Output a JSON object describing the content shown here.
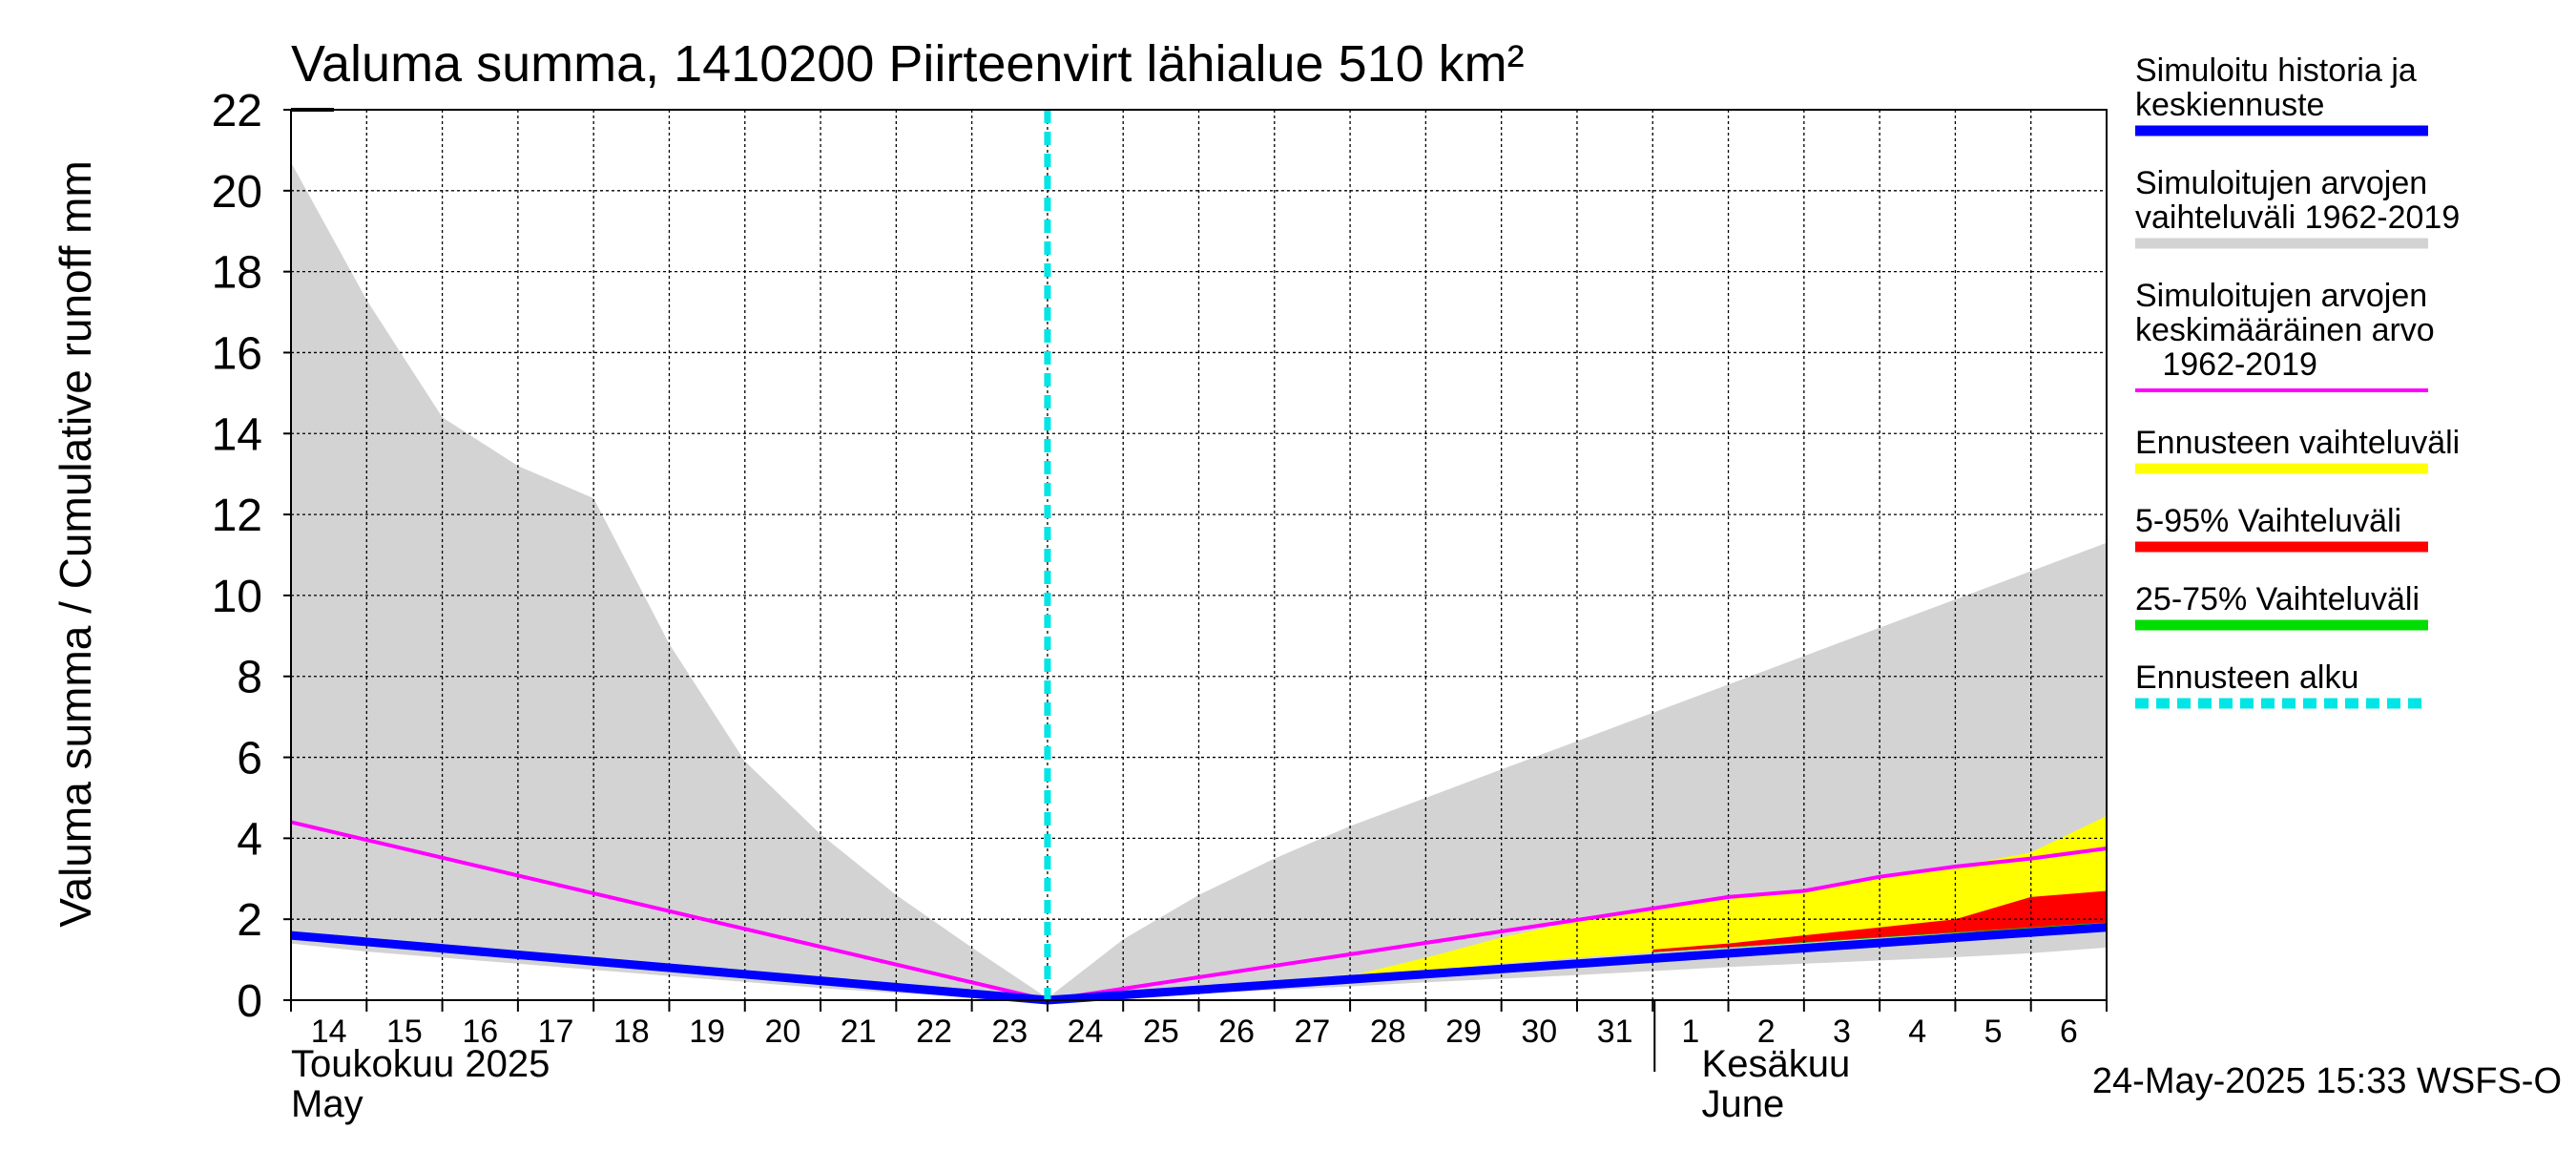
{
  "chart_data": {
    "type": "area",
    "title": "Valuma summa, 1410200 Piirteenvirt lähialue 510 km²",
    "ylabel": "Valuma summa / Cumulative runoff    mm",
    "ylim": [
      0,
      22
    ],
    "y_ticks": [
      0,
      2,
      4,
      6,
      8,
      10,
      12,
      14,
      16,
      18,
      20,
      22
    ],
    "grid": true,
    "legend_position": "right",
    "x_start": "2025-05-14",
    "x_end": "2025-06-07",
    "x_tick_labels": [
      "14",
      "15",
      "16",
      "17",
      "18",
      "19",
      "20",
      "21",
      "22",
      "23",
      "24",
      "25",
      "26",
      "27",
      "28",
      "29",
      "30",
      "31",
      "1",
      "2",
      "3",
      "4",
      "5",
      "6"
    ],
    "month_labels": [
      {
        "date": "2025-05-14",
        "line1": "Toukokuu  2025",
        "line2": "May"
      },
      {
        "date": "2025-06-02",
        "line1": "Kesäkuu",
        "line2": "June"
      }
    ],
    "forecast_start": "2025-05-24",
    "footer": "24-May-2025 15:33 WSFS-O",
    "series": [
      {
        "name": "Simuloitujen arvojen vaihteluväli 1962-2019",
        "color": "#d3d3d3",
        "kind": "band",
        "x": [
          "2025-05-14",
          "2025-05-15",
          "2025-05-16",
          "2025-05-17",
          "2025-05-18",
          "2025-05-19",
          "2025-05-20",
          "2025-05-21",
          "2025-05-22",
          "2025-05-23",
          "2025-05-24",
          "2025-05-25",
          "2025-05-26",
          "2025-05-27",
          "2025-05-28",
          "2025-05-29",
          "2025-05-30",
          "2025-05-31",
          "2025-06-01",
          "2025-06-02",
          "2025-06-03",
          "2025-06-04",
          "2025-06-05",
          "2025-06-06",
          "2025-06-07"
        ],
        "upper": [
          20.7,
          17.3,
          14.4,
          13.2,
          12.4,
          8.8,
          5.9,
          4.1,
          2.6,
          1.3,
          0.05,
          1.5,
          2.6,
          3.5,
          4.3,
          5.0,
          5.7,
          6.4,
          7.1,
          7.8,
          8.5,
          9.2,
          9.9,
          10.6,
          11.3
        ],
        "lower": [
          1.4,
          1.2,
          1.05,
          0.9,
          0.75,
          0.6,
          0.45,
          0.3,
          0.18,
          0.08,
          0.0,
          0.08,
          0.16,
          0.25,
          0.34,
          0.44,
          0.53,
          0.62,
          0.72,
          0.82,
          0.9,
          0.98,
          1.06,
          1.16,
          1.3
        ]
      },
      {
        "name": "Ennusteen vaihteluväli",
        "color": "#ffff00",
        "kind": "band",
        "x": [
          "2025-05-28",
          "2025-05-29",
          "2025-05-30",
          "2025-05-31",
          "2025-06-01",
          "2025-06-02",
          "2025-06-03",
          "2025-06-04",
          "2025-06-05",
          "2025-06-06",
          "2025-06-07"
        ],
        "upper": [
          0.6,
          1.05,
          1.55,
          1.95,
          2.25,
          2.5,
          2.75,
          3.0,
          3.3,
          3.65,
          4.55
        ],
        "lower": [
          0.55,
          0.72,
          0.9,
          1.05,
          1.18,
          1.3,
          1.42,
          1.55,
          1.66,
          1.75,
          1.9
        ]
      },
      {
        "name": "5-95% Vaihteluväli",
        "color": "#ff0000",
        "kind": "band",
        "x": [
          "2025-06-01",
          "2025-06-02",
          "2025-06-03",
          "2025-06-04",
          "2025-06-05",
          "2025-06-06",
          "2025-06-07"
        ],
        "upper": [
          1.25,
          1.4,
          1.6,
          1.8,
          2.0,
          2.55,
          2.7
        ],
        "lower": [
          1.18,
          1.3,
          1.42,
          1.55,
          1.66,
          1.75,
          1.9
        ]
      },
      {
        "name": "25-75% Vaihteluväli",
        "color": "#00dd00",
        "kind": "band",
        "x": [
          "2025-06-01",
          "2025-06-07"
        ],
        "upper": [
          1.19,
          1.92
        ],
        "lower": [
          1.18,
          1.9
        ]
      },
      {
        "name": "Simuloitujen arvojen keskimääräinen arvo 1962-2019",
        "color": "#ff00ff",
        "kind": "line",
        "x": [
          "2025-05-14",
          "2025-05-24",
          "2025-06-02",
          "2025-06-03",
          "2025-06-04",
          "2025-06-05",
          "2025-06-06",
          "2025-06-07"
        ],
        "values": [
          4.4,
          0.0,
          2.55,
          2.7,
          3.05,
          3.3,
          3.5,
          3.75
        ]
      },
      {
        "name": "Simuloitu historia ja keskiennuste",
        "color": "#0000ff",
        "kind": "line",
        "x": [
          "2025-05-14",
          "2025-05-24",
          "2025-06-07"
        ],
        "values": [
          1.6,
          0.0,
          1.8
        ]
      },
      {
        "name": "Ennusteen alku",
        "color": "#00e5e5",
        "kind": "vline",
        "x": [
          "2025-05-24"
        ]
      }
    ],
    "legend": [
      {
        "lines": [
          "Simuloitu historia ja",
          "keskiennuste"
        ],
        "color": "#0000ff",
        "style": "solid"
      },
      {
        "lines": [
          "Simuloitujen arvojen",
          "vaihteluväli 1962-2019"
        ],
        "color": "#d3d3d3",
        "style": "solid"
      },
      {
        "lines": [
          "Simuloitujen arvojen",
          "keskimääräinen arvo",
          "   1962-2019"
        ],
        "color": "#ff00ff",
        "style": "thin"
      },
      {
        "lines": [
          "Ennusteen vaihteluväli"
        ],
        "color": "#ffff00",
        "style": "solid"
      },
      {
        "lines": [
          "5-95% Vaihteluväli"
        ],
        "color": "#ff0000",
        "style": "solid"
      },
      {
        "lines": [
          "25-75% Vaihteluväli"
        ],
        "color": "#00dd00",
        "style": "solid"
      },
      {
        "lines": [
          "Ennusteen alku"
        ],
        "color": "#00e5e5",
        "style": "dashed"
      }
    ]
  }
}
